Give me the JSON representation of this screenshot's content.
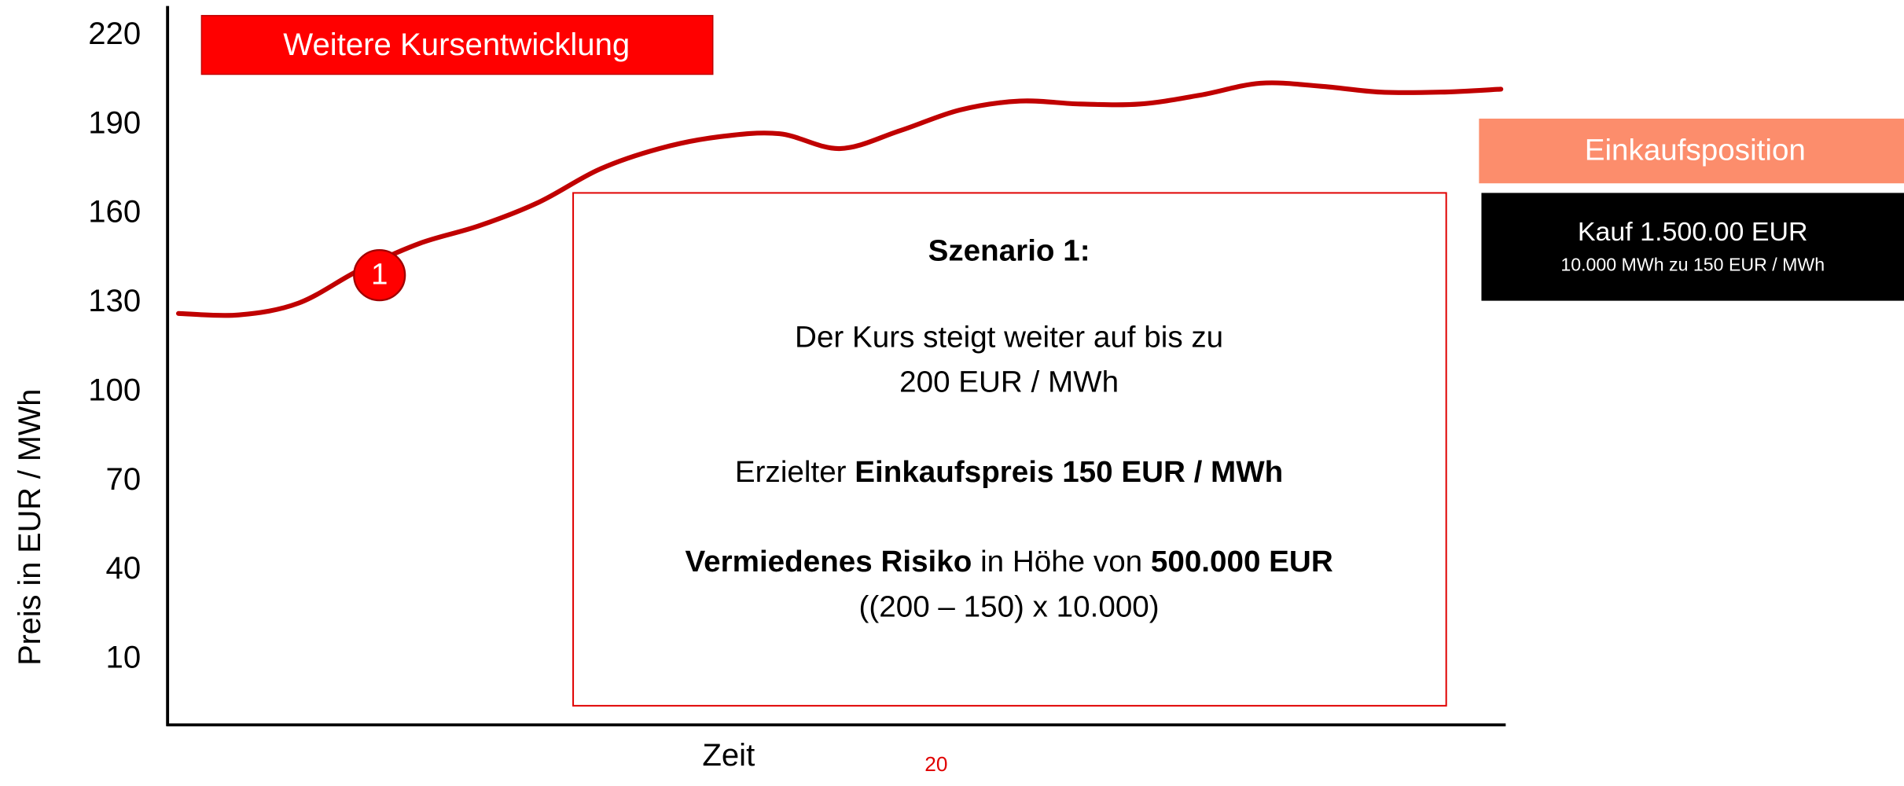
{
  "chart_data": {
    "type": "line",
    "label_box": "Weitere Kursentwicklung",
    "y_axis_label": "Preis in EUR / MWh",
    "x_axis_label": "Zeit",
    "ylim": [
      -12,
      230
    ],
    "yticks": [
      10,
      40,
      70,
      100,
      130,
      160,
      190,
      220
    ],
    "grid": false,
    "categories": [
      null,
      null,
      null,
      null,
      null,
      null,
      null,
      null,
      null,
      null,
      null,
      null,
      null,
      null,
      null,
      null,
      null,
      null,
      null,
      null,
      null,
      null,
      null
    ],
    "series": [
      {
        "name": null,
        "color": "#c00000",
        "values": [
          126.5,
          126,
          130,
          141,
          150,
          156,
          164,
          175,
          182,
          186,
          187,
          182,
          188,
          195,
          198,
          197,
          197,
          200,
          204,
          203,
          201,
          201,
          202
        ]
      }
    ],
    "marker": {
      "label": "1",
      "index": 3
    },
    "position_box": {
      "title": "Einkaufsposition",
      "line1": "Kauf 1.500.00 EUR",
      "line2": "10.000 MWh zu 150 EUR / MWh"
    },
    "scenario": {
      "title": "Szenario 1:",
      "lines": [
        [
          {
            "text": "Der Kurs steigt weiter auf bis zu",
            "bold": false
          }
        ],
        [
          {
            "text": "200 EUR / MWh",
            "bold": false
          }
        ],
        null,
        [
          {
            "text": "Erzielter ",
            "bold": false
          },
          {
            "text": "Einkaufspreis 150 EUR / MWh",
            "bold": true
          }
        ],
        null,
        [
          {
            "text": "Vermiedenes Risiko",
            "bold": true
          },
          {
            "text": " in Höhe von ",
            "bold": false
          },
          {
            "text": "500.000 EUR",
            "bold": true
          }
        ],
        [
          {
            "text": "((200 – 150) x 10.000)",
            "bold": false
          }
        ]
      ]
    },
    "page_number": "20"
  }
}
